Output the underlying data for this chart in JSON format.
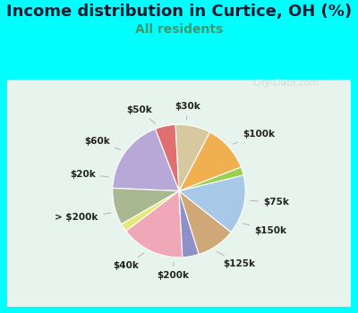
{
  "title": "Income distribution in Curtice, OH (%)",
  "subtitle": "All residents",
  "title_color": "#1a1a2e",
  "subtitle_color": "#3a9a6e",
  "background_color": "#00ffff",
  "watermark": "Ⓜ City-Data.com",
  "labels": [
    "$30k",
    "$100k",
    "$75k",
    "$150k",
    "$125k",
    "$200k",
    "$40k",
    "> $200k",
    "$20k",
    "$60k",
    "$50k"
  ],
  "sizes": [
    5.0,
    18.5,
    9.0,
    2.0,
    15.5,
    4.0,
    9.5,
    14.5,
    2.0,
    11.5,
    8.5
  ],
  "colors": [
    "#e07070",
    "#b8a8d8",
    "#a8b890",
    "#e8e878",
    "#f0a8b8",
    "#9090c8",
    "#d0a878",
    "#a8c8e8",
    "#98d050",
    "#f0b050",
    "#d8c8a0"
  ],
  "startangle": 93,
  "label_fontsize": 7.5,
  "title_fontsize": 13,
  "subtitle_fontsize": 10
}
